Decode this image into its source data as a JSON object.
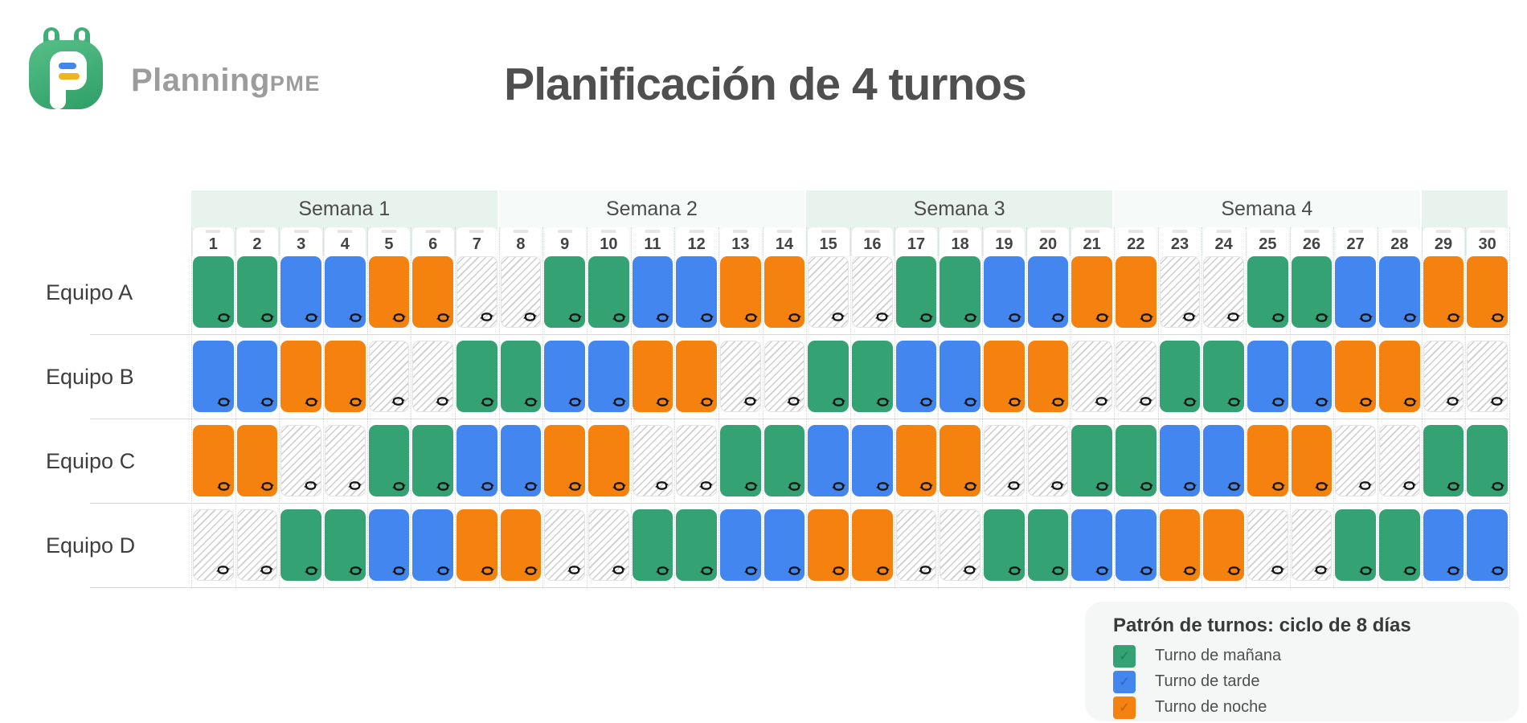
{
  "brand": {
    "name_main": "Planning",
    "name_suffix": "PME"
  },
  "title": "Planificación de 4 turnos",
  "weeks": [
    {
      "label": "Semana 1",
      "days": 7
    },
    {
      "label": "Semana 2",
      "days": 7
    },
    {
      "label": "Semana 3",
      "days": 7
    },
    {
      "label": "Semana 4",
      "days": 7
    },
    {
      "label": "",
      "days": 2
    }
  ],
  "days": [
    1,
    2,
    3,
    4,
    5,
    6,
    7,
    8,
    9,
    10,
    11,
    12,
    13,
    14,
    15,
    16,
    17,
    18,
    19,
    20,
    21,
    22,
    23,
    24,
    25,
    26,
    27,
    28,
    29,
    30
  ],
  "shifts": {
    "M": {
      "label": "Turno de mañana",
      "color": "#34A273"
    },
    "T": {
      "label": "Turno de tarde",
      "color": "#4486F0"
    },
    "N": {
      "label": "Turno de noche",
      "color": "#F5810F"
    },
    "R": {
      "label": "",
      "color": "hatched"
    }
  },
  "teams": [
    {
      "label": "Equipo A",
      "pattern": "MMTTNNRRMMTTNNRRMMTTNNRRMMTTNN"
    },
    {
      "label": "Equipo B",
      "pattern": "TTNNRRMMTTNNRRMMTTNNRRMMTTNNRR"
    },
    {
      "label": "Equipo C",
      "pattern": "NNRRMMTTNNRRMMTTNNRRMMTTNNRRMM"
    },
    {
      "label": "Equipo D",
      "pattern": "RRMMTTNNRRMMTTNNRRMMTTNNRRMMTT"
    }
  ],
  "legend": {
    "title": "Patrón de turnos: ciclo de 8 días",
    "order": [
      "M",
      "T",
      "N"
    ]
  },
  "icons": {
    "repeat-icon": "cycle-arrows"
  }
}
